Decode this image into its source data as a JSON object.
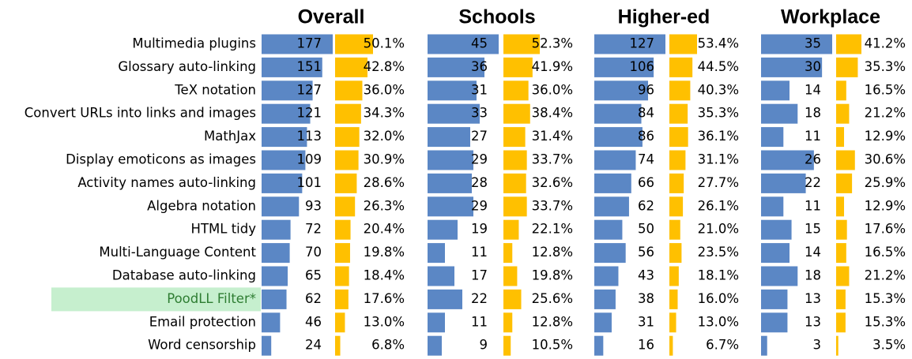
{
  "chart_data": {
    "type": "databar-table",
    "categories": [
      "Multimedia plugins",
      "Glossary auto-linking",
      "TeX notation",
      "Convert URLs into links and images",
      "MathJax",
      "Display emoticons as images",
      "Activity names auto-linking",
      "Algebra notation",
      "HTML tidy",
      "Multi-Language Content",
      "Database auto-linking",
      "PoodLL Filter*",
      "Email protection",
      "Word censorship"
    ],
    "highlighted_row": 11,
    "highlight_color": "#c6efce",
    "highlight_text_color": "#2e7d32",
    "count_color": "#5b87c5",
    "percent_color": "#ffc000",
    "groups": [
      {
        "title": "Overall",
        "counts": [
          177,
          151,
          127,
          121,
          113,
          109,
          101,
          93,
          72,
          70,
          65,
          62,
          46,
          24
        ],
        "percents": [
          50.1,
          42.8,
          36.0,
          34.3,
          32.0,
          30.9,
          28.6,
          26.3,
          20.4,
          19.8,
          18.4,
          17.6,
          13.0,
          6.8
        ],
        "value_labels": [
          "50.1%",
          "42.8%",
          "36.0%",
          "34.3%",
          "32.0%",
          "30.9%",
          "28.6%",
          "26.3%",
          "20.4%",
          "19.8%",
          "18.4%",
          "17.6%",
          "13.0%",
          "6.8%"
        ]
      },
      {
        "title": "Schools",
        "counts": [
          45,
          36,
          31,
          33,
          27,
          29,
          28,
          29,
          19,
          11,
          17,
          22,
          11,
          9
        ],
        "percents": [
          52.3,
          41.9,
          36.0,
          38.4,
          31.4,
          33.7,
          32.6,
          33.7,
          22.1,
          12.8,
          19.8,
          25.6,
          12.8,
          10.5
        ],
        "value_labels": [
          "52.3%",
          "41.9%",
          "36.0%",
          "38.4%",
          "31.4%",
          "33.7%",
          "32.6%",
          "33.7%",
          "22.1%",
          "12.8%",
          "19.8%",
          "25.6%",
          "12.8%",
          "10.5%"
        ]
      },
      {
        "title": "Higher-ed",
        "counts": [
          127,
          106,
          96,
          84,
          86,
          74,
          66,
          62,
          50,
          56,
          43,
          38,
          31,
          16
        ],
        "percents": [
          53.4,
          44.5,
          40.3,
          35.3,
          36.1,
          31.1,
          27.7,
          26.1,
          21.0,
          23.5,
          18.1,
          16.0,
          13.0,
          6.7
        ],
        "value_labels": [
          "53.4%",
          "44.5%",
          "40.3%",
          "35.3%",
          "36.1%",
          "31.1%",
          "27.7%",
          "26.1%",
          "21.0%",
          "23.5%",
          "18.1%",
          "16.0%",
          "13.0%",
          "6.7%"
        ]
      },
      {
        "title": "Workplace",
        "counts": [
          35,
          30,
          14,
          18,
          11,
          26,
          22,
          11,
          15,
          14,
          18,
          13,
          13,
          3
        ],
        "percents": [
          41.2,
          35.3,
          16.5,
          21.2,
          12.9,
          30.6,
          25.9,
          12.9,
          17.6,
          16.5,
          21.2,
          15.3,
          15.3,
          3.5
        ],
        "value_labels": [
          "41.2%",
          "35.3%",
          "16.5%",
          "21.2%",
          "12.9%",
          "30.6%",
          "25.9%",
          "12.9%",
          "17.6%",
          "16.5%",
          "21.2%",
          "15.3%",
          "15.3%",
          "3.5%"
        ]
      }
    ]
  }
}
